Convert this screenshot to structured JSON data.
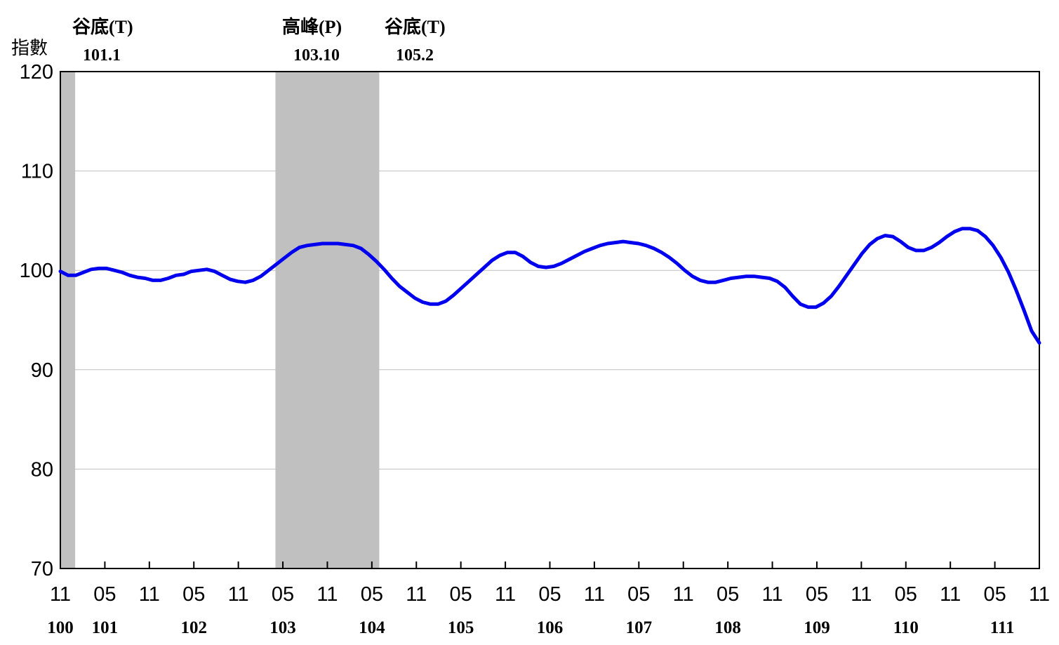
{
  "chart_data": {
    "type": "line",
    "ylabel": "指數",
    "ylim": [
      70,
      120
    ],
    "yticks": [
      "120",
      "110",
      "100",
      "90",
      "80",
      "70"
    ],
    "xtick_labels": [
      "11",
      "05",
      "11",
      "05",
      "11",
      "05",
      "11",
      "05",
      "11",
      "05",
      "11",
      "05",
      "11",
      "05",
      "11",
      "05",
      "11",
      "05",
      "11",
      "05",
      "11",
      "05",
      "11"
    ],
    "year_labels": [
      "100",
      "101",
      "102",
      "103",
      "104",
      "105",
      "106",
      "107",
      "108",
      "109",
      "110",
      "111"
    ],
    "grid": true,
    "shaded_periods": [
      {
        "start_month": 0,
        "end_month": 2
      },
      {
        "start_month": 29,
        "end_month": 43
      }
    ],
    "annotations": [
      {
        "label": "谷底(T)",
        "date": "101.1"
      },
      {
        "label": "高峰(P)",
        "date": "103.10"
      },
      {
        "label": "谷底(T)",
        "date": "105.2"
      }
    ],
    "series": [
      {
        "color": "#0000EE",
        "x_start": "100.11",
        "x_end": "111.11",
        "values": [
          99.9,
          99.5,
          99.5,
          99.8,
          100.1,
          100.2,
          100.2,
          100.0,
          99.8,
          99.5,
          99.3,
          99.2,
          99.0,
          99.0,
          99.2,
          99.5,
          99.6,
          99.9,
          100.0,
          100.1,
          99.9,
          99.5,
          99.1,
          98.9,
          98.8,
          99.0,
          99.4,
          100.0,
          100.6,
          101.2,
          101.8,
          102.3,
          102.5,
          102.6,
          102.7,
          102.7,
          102.7,
          102.6,
          102.5,
          102.2,
          101.6,
          100.9,
          100.1,
          99.2,
          98.4,
          97.8,
          97.2,
          96.8,
          96.6,
          96.6,
          96.9,
          97.5,
          98.2,
          98.9,
          99.6,
          100.3,
          101.0,
          101.5,
          101.8,
          101.8,
          101.4,
          100.8,
          100.4,
          100.3,
          100.4,
          100.7,
          101.1,
          101.5,
          101.9,
          102.2,
          102.5,
          102.7,
          102.8,
          102.9,
          102.8,
          102.7,
          102.5,
          102.2,
          101.8,
          101.3,
          100.7,
          100.0,
          99.4,
          99.0,
          98.8,
          98.8,
          99.0,
          99.2,
          99.3,
          99.4,
          99.4,
          99.3,
          99.2,
          98.9,
          98.3,
          97.4,
          96.6,
          96.3,
          96.3,
          96.7,
          97.4,
          98.4,
          99.5,
          100.6,
          101.7,
          102.6,
          103.2,
          103.5,
          103.4,
          102.9,
          102.3,
          102.0,
          102.0,
          102.3,
          102.8,
          103.4,
          103.9,
          104.2,
          104.2,
          104.0,
          103.4,
          102.5,
          101.3,
          99.8,
          98.0,
          96.0,
          93.9,
          92.7
        ]
      }
    ]
  }
}
